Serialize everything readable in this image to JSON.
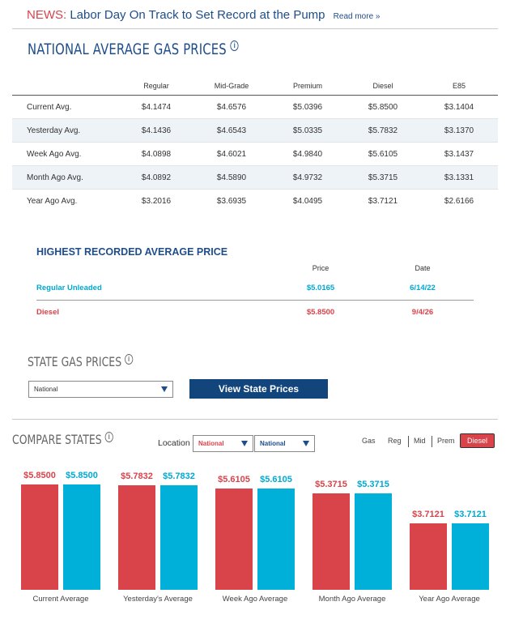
{
  "news": {
    "label": "NEWS:",
    "headline": "Labor Day On Track to Set Record at the Pump",
    "more": "Read more »"
  },
  "national": {
    "title": "NATIONAL AVERAGE GAS PRICES",
    "columns": [
      "Regular",
      "Mid-Grade",
      "Premium",
      "Diesel",
      "E85"
    ],
    "rows": [
      {
        "label": "Current Avg.",
        "values": [
          "$4.1474",
          "$4.6576",
          "$5.0396",
          "$5.8500",
          "$3.1404"
        ]
      },
      {
        "label": "Yesterday Avg.",
        "values": [
          "$4.1436",
          "$4.6543",
          "$5.0335",
          "$5.7832",
          "$3.1370"
        ]
      },
      {
        "label": "Week Ago Avg.",
        "values": [
          "$4.0898",
          "$4.6021",
          "$4.9840",
          "$5.6105",
          "$3.1437"
        ]
      },
      {
        "label": "Month Ago Avg.",
        "values": [
          "$4.0892",
          "$4.5890",
          "$4.9732",
          "$5.3715",
          "$3.1331"
        ]
      },
      {
        "label": "Year Ago Avg.",
        "values": [
          "$3.2016",
          "$3.6935",
          "$4.0495",
          "$3.7121",
          "$2.6166"
        ]
      }
    ]
  },
  "highest": {
    "title": "HIGHEST RECORDED AVERAGE PRICE",
    "price_header": "Price",
    "date_header": "Date",
    "rows": [
      {
        "label": "Regular Unleaded",
        "price": "$5.0165",
        "date": "6/14/22",
        "color": "#00a9d2"
      },
      {
        "label": "Diesel",
        "price": "$5.8500",
        "date": "9/4/26",
        "color": "#d9434a"
      }
    ]
  },
  "state": {
    "title": "STATE GAS PRICES",
    "select_value": "National",
    "button": "View State Prices"
  },
  "compare": {
    "title": "COMPARE STATES",
    "location_label": "Location",
    "location_a": "National",
    "location_b": "National",
    "tabs": [
      "Gas",
      "Reg",
      "Mid",
      "Prem"
    ],
    "active_tab": "Diesel",
    "colors": {
      "location_a": "#d9434a",
      "location_b": "#00b0d8"
    }
  },
  "chart_data": {
    "type": "bar",
    "categories": [
      "Current Average",
      "Yesterday's Average",
      "Week Ago Average",
      "Month Ago Average",
      "Year Ago Average"
    ],
    "series": [
      {
        "values": [
          5.85,
          5.7832,
          5.6105,
          5.3715,
          3.7121
        ]
      },
      {
        "values": [
          5.85,
          5.7832,
          5.6105,
          5.3715,
          3.7121
        ]
      }
    ],
    "labels": [
      [
        "$5.8500",
        "$5.7832",
        "$5.6105",
        "$5.3715",
        "$3.7121"
      ],
      [
        "$5.8500",
        "$5.7832",
        "$5.6105",
        "$5.3715",
        "$3.7121"
      ]
    ]
  }
}
